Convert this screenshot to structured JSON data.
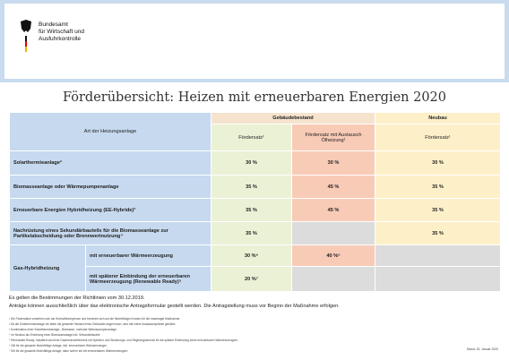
{
  "header": {
    "org_lines": [
      "Bundesamt",
      "für Wirtschaft und",
      "Ausfuhrkontrolle"
    ]
  },
  "title": "Förderübersicht: Heizen mit erneuerbaren Energien 2020",
  "table": {
    "type_header": "Art der Heizungsanlage",
    "group_headers": [
      "Gebäudebestand",
      "Neubau"
    ],
    "column_headers": [
      "Fördersatz¹",
      "Fördersatz mit Austausch Ölheizung¹",
      "Fördersatz¹"
    ],
    "rows": [
      {
        "label": "Solarthermieanlage²",
        "cells": [
          "30 %",
          "30 %",
          "30 %"
        ]
      },
      {
        "label": "Biomasseanlage oder Wärmepumpenanlage",
        "cells": [
          "35 %",
          "45 %",
          "35 %"
        ]
      },
      {
        "label": "Erneuerbare Energien Hybridheizung (EE-Hybride)³",
        "cells": [
          "35 %",
          "45 %",
          "35 %"
        ]
      },
      {
        "label": "Nachrüstung eines Sekundärbauteils für die Biomasseanlage zur Partikelabscheidung oder Brennwertnutzung⁴",
        "cells": [
          "35 %",
          null,
          "35 %"
        ]
      }
    ],
    "gas": {
      "label": "Gas-Hybridheizung",
      "subrows": [
        {
          "label": "mit erneuerbarer Wärmeerzeugung",
          "cells": [
            "30 %⁶",
            "40 %⁶",
            null
          ]
        },
        {
          "label": "mit späterer Einbindung der erneuerbaren Wärmeerzeugung (Renewable Ready)⁵",
          "cells": [
            "20 %⁷",
            null,
            null
          ]
        }
      ]
    }
  },
  "notes": [
    "Es gelten die Bestimmungen der Richtlinien vom 30.12.2019.",
    "Anträge können ausschließlich über das elektronische Antragsformular gestellt werden. Die Antragstellung muss vor Beginn der Maßnahme erfolgen."
  ],
  "footnotes": [
    "¹ Die Fördersätze verstehen sich als Höchstfördergrenze und beziehen sich auf die förderfähigen Kosten für die beantragte Maßnahme.",
    "² Da die Solarthermieanlage nie allein die gesamte Heizlast eines Gebäudes tragen kann, wird hier keine Austauschprämie gewährt.",
    "³ Kombination einer Solarthermieanlage-, Biomasse- und/oder Wärmepumpenanlage.",
    "⁴ Im Neubau als Errichtung einer Biomasseanlage inkl. Sekundärbauteil.",
    "⁵ Renewable Ready: Installiert wird eine Gasbrennwerttechnik mit Speicher und Steuerungs- und Regelungstechnik für die spätere Einbindung eines erneuerbaren Wärmeerzeugers.",
    "⁶ Gilt für die gesamte förderfähige Anlage, inkl. erneuerbarer Wärmeerzeuger.",
    "⁷ Gilt für die gesamte förderfähige Anlage, dann sofern sie mit erneuerbaren Wärmeerzeugern"
  ],
  "date": "Stand: 15. Januar 2020"
}
